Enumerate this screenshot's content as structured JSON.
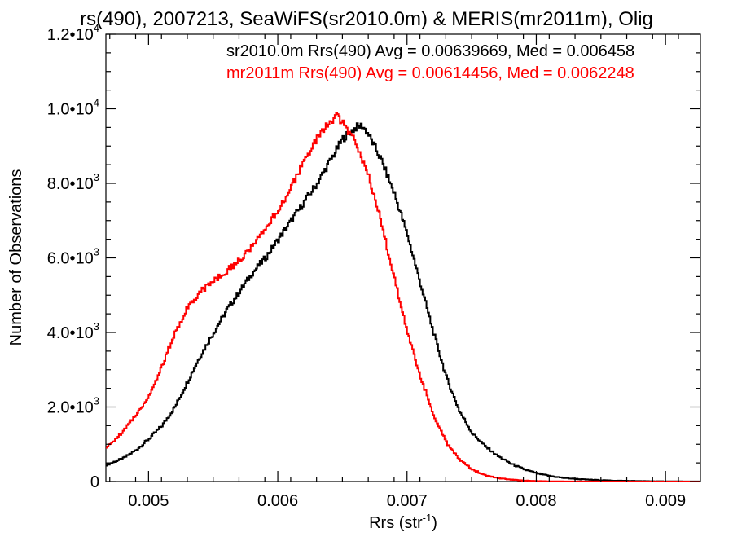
{
  "chart_data": {
    "type": "line",
    "title": "rs(490), 2007213, SeaWiFS(sr2010.0m) & MERIS(mr2011m), Olig",
    "xlabel": "Rrs (str",
    "xlabel_sup": "-1",
    "xlabel_close": ")",
    "ylabel": "Number of Observations",
    "xlim": [
      0.00467,
      0.00927
    ],
    "ylim": [
      0,
      12000
    ],
    "x_ticks": [
      {
        "value": 0.005,
        "label": "0.005"
      },
      {
        "value": 0.006,
        "label": "0.006"
      },
      {
        "value": 0.007,
        "label": "0.007"
      },
      {
        "value": 0.008,
        "label": "0.008"
      },
      {
        "value": 0.009,
        "label": "0.009"
      }
    ],
    "y_ticks": [
      {
        "value": 0,
        "label": "0",
        "exp": ""
      },
      {
        "value": 2000,
        "label": "2.0•10",
        "exp": "3"
      },
      {
        "value": 4000,
        "label": "4.0•10",
        "exp": "3"
      },
      {
        "value": 6000,
        "label": "6.0•10",
        "exp": "3"
      },
      {
        "value": 8000,
        "label": "8.0•10",
        "exp": "3"
      },
      {
        "value": 10000,
        "label": "1.0•10",
        "exp": "4"
      },
      {
        "value": 12000,
        "label": "1.2•10",
        "exp": "4"
      }
    ],
    "legend": [
      {
        "text": "sr2010.0m Rrs(490) Avg = 0.00639669, Med = 0.006458",
        "color": "#000000"
      },
      {
        "text": "mr2011m Rrs(490) Avg = 0.00614456, Med = 0.0062248",
        "color": "#ff0000"
      }
    ],
    "series": [
      {
        "color": "#000000",
        "x": [
          0.00467,
          0.0048,
          0.0049,
          0.005,
          0.0051,
          0.0052,
          0.0053,
          0.0054,
          0.0055,
          0.0056,
          0.0057,
          0.0058,
          0.0059,
          0.006,
          0.0061,
          0.0062,
          0.0063,
          0.0064,
          0.0065,
          0.0066,
          0.00665,
          0.0067,
          0.0068,
          0.0069,
          0.007,
          0.0071,
          0.0072,
          0.0073,
          0.0074,
          0.0075,
          0.0076,
          0.0077,
          0.0078,
          0.0079,
          0.008,
          0.0081,
          0.0082,
          0.0083,
          0.0084,
          0.0085,
          0.0086,
          0.0087,
          0.0088,
          0.0089,
          0.009,
          0.0091,
          0.00927
        ],
        "y": [
          450,
          620,
          850,
          1150,
          1500,
          2000,
          2700,
          3400,
          4000,
          4600,
          5100,
          5600,
          6000,
          6500,
          7000,
          7500,
          8000,
          8600,
          9200,
          9500,
          9550,
          9300,
          8600,
          7700,
          6600,
          5300,
          4000,
          2800,
          1900,
          1300,
          950,
          680,
          480,
          330,
          220,
          150,
          100,
          70,
          50,
          35,
          25,
          18,
          12,
          8,
          5,
          3,
          2
        ]
      },
      {
        "color": "#ff0000",
        "x": [
          0.00467,
          0.0048,
          0.0049,
          0.005,
          0.0051,
          0.0052,
          0.0053,
          0.0054,
          0.0055,
          0.0056,
          0.0057,
          0.0058,
          0.0059,
          0.006,
          0.0061,
          0.0062,
          0.0063,
          0.0064,
          0.00645,
          0.0065,
          0.0066,
          0.0067,
          0.0068,
          0.0069,
          0.007,
          0.0071,
          0.0072,
          0.0073,
          0.0074,
          0.0075,
          0.0076,
          0.0077,
          0.0078,
          0.0079,
          0.008,
          0.0081,
          0.0082,
          0.0083,
          0.0084,
          0.0085,
          0.0086,
          0.0087,
          0.0088,
          0.0089,
          0.009,
          0.0091,
          0.00927
        ],
        "y": [
          900,
          1350,
          1800,
          2300,
          3100,
          4000,
          4700,
          5100,
          5400,
          5650,
          5950,
          6300,
          6750,
          7300,
          7900,
          8600,
          9200,
          9650,
          9800,
          9600,
          9100,
          8200,
          6900,
          5400,
          4000,
          2800,
          1800,
          1050,
          600,
          330,
          170,
          90,
          50,
          25,
          12,
          6,
          3,
          2,
          1,
          1,
          0,
          0,
          0,
          0,
          0,
          0,
          0
        ]
      }
    ]
  }
}
